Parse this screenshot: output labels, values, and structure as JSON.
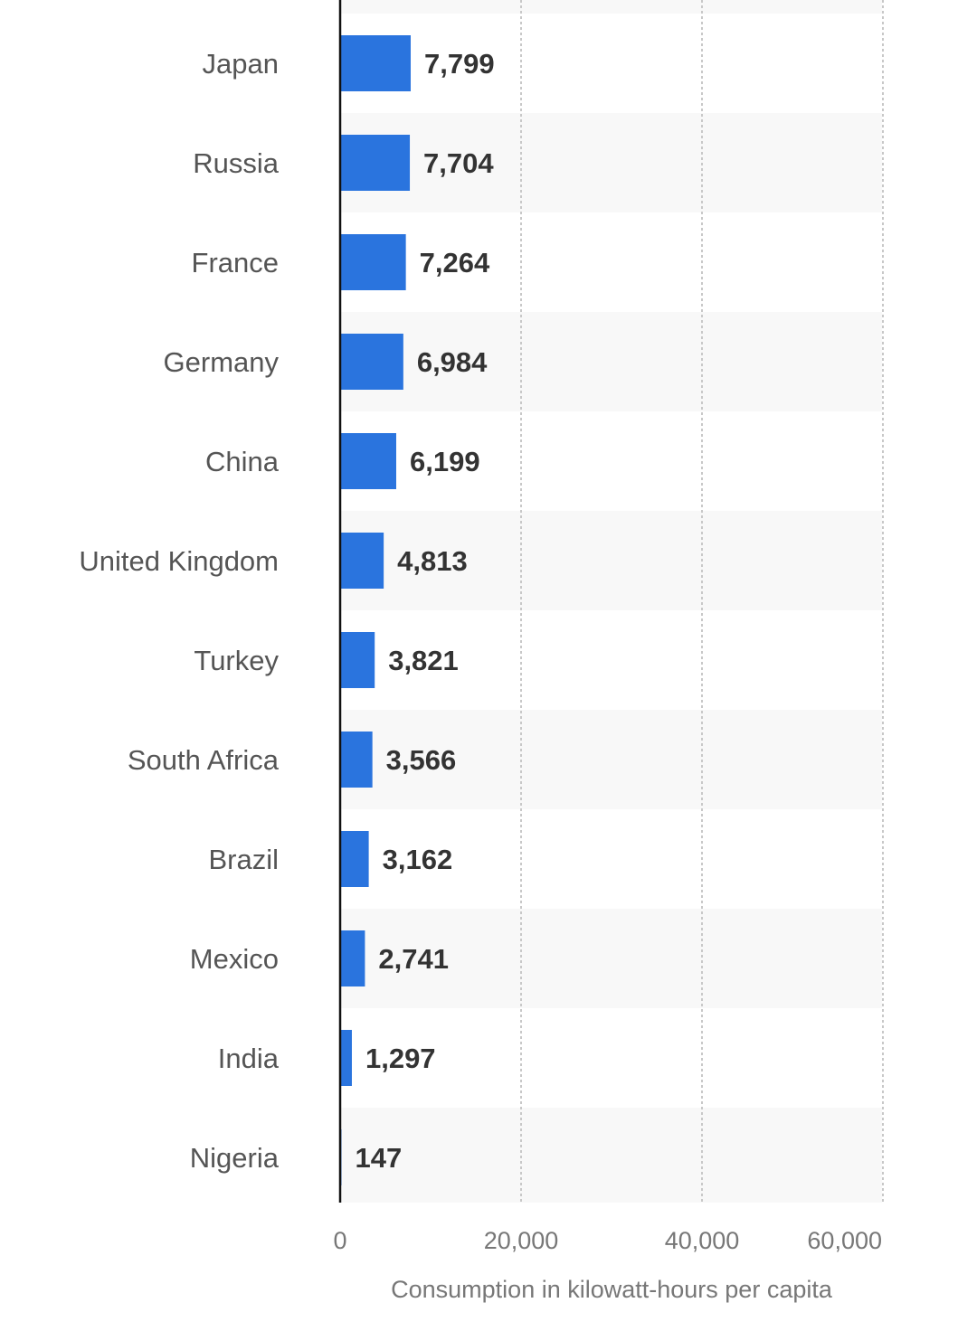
{
  "chart_data": {
    "type": "bar",
    "orientation": "horizontal",
    "categories": [
      "Japan",
      "Russia",
      "France",
      "Germany",
      "China",
      "United Kingdom",
      "Turkey",
      "South Africa",
      "Brazil",
      "Mexico",
      "India",
      "Nigeria"
    ],
    "values": [
      7799,
      7704,
      7264,
      6984,
      6199,
      4813,
      3821,
      3566,
      3162,
      2741,
      1297,
      147
    ],
    "value_labels": [
      "7,799",
      "7,704",
      "7,264",
      "6,984",
      "6,199",
      "4,813",
      "3,821",
      "3,566",
      "3,162",
      "2,741",
      "1,297",
      "147"
    ],
    "xlabel": "Consumption in kilowatt-hours per capita",
    "xlim": [
      0,
      60000
    ],
    "xticks": [
      0,
      20000,
      40000,
      60000
    ],
    "xtick_labels": [
      "0",
      "20,000",
      "40,000",
      "60,000"
    ],
    "bar_color": "#2a74de",
    "stripe_color": "#f8f8f8",
    "grid": true
  }
}
